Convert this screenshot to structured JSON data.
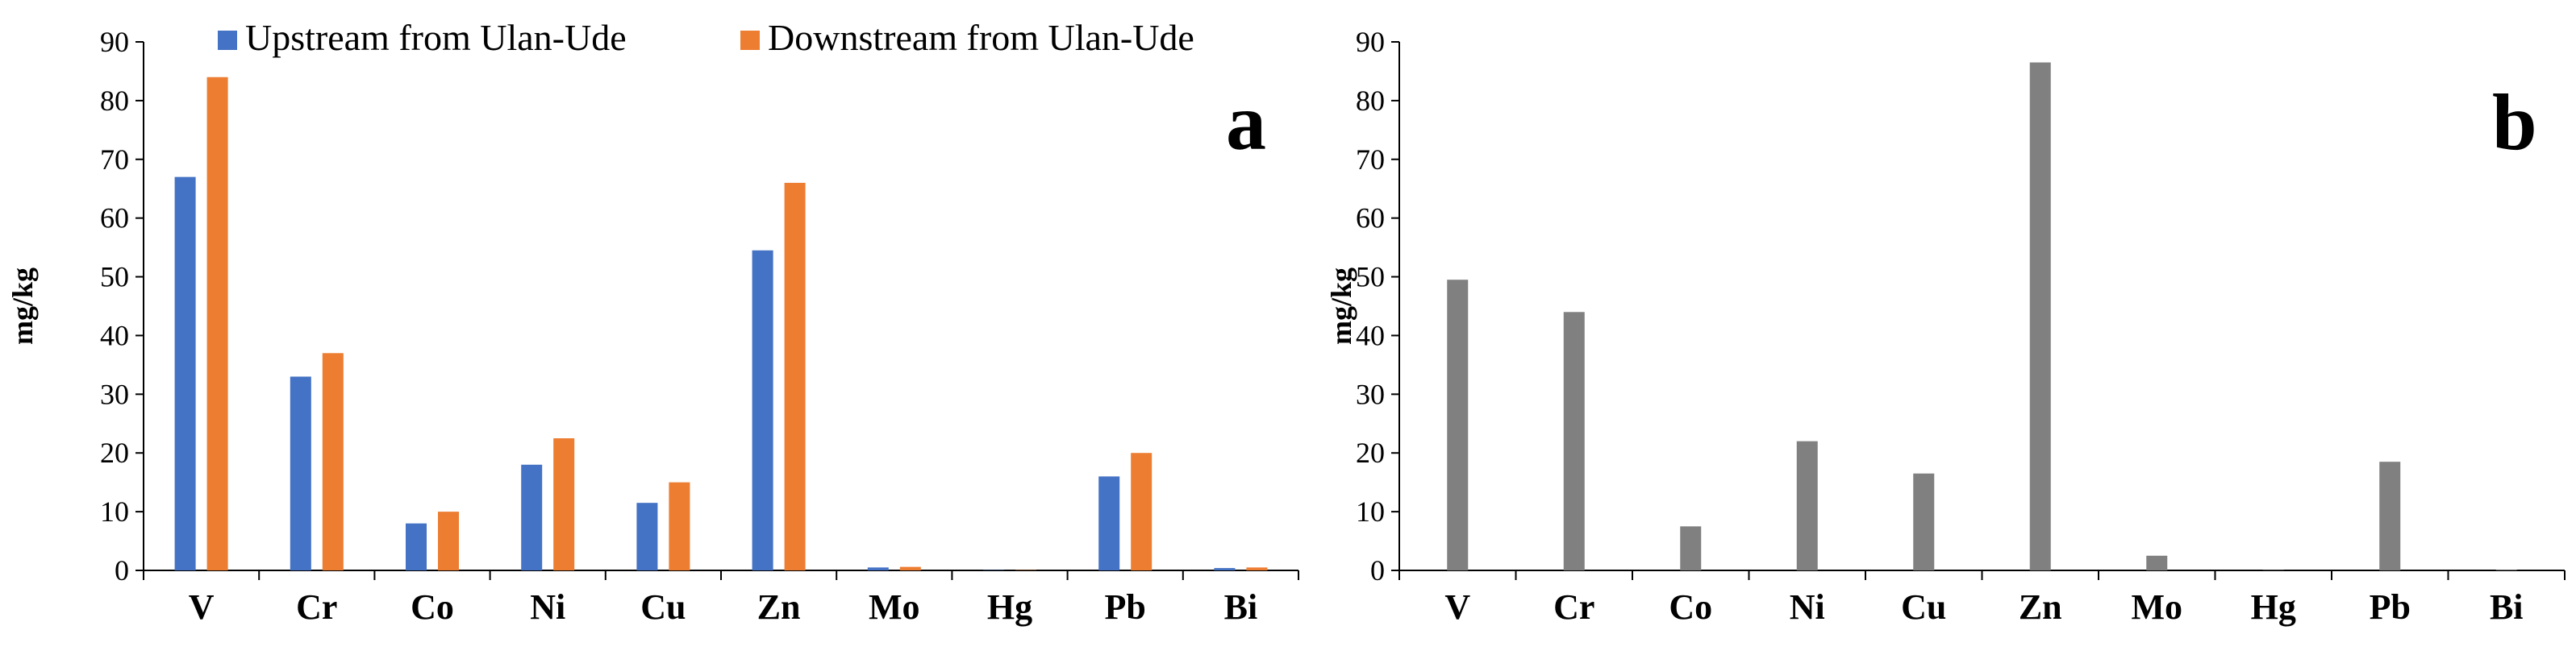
{
  "chart_data": [
    {
      "type": "bar",
      "panel_label": "a",
      "ylabel": "mg/kg",
      "ylim": [
        0,
        90
      ],
      "yticks": [
        0,
        10,
        20,
        30,
        40,
        50,
        60,
        70,
        80,
        90
      ],
      "categories": [
        "V",
        "Cr",
        "Co",
        "Ni",
        "Cu",
        "Zn",
        "Mo",
        "Hg",
        "Pb",
        "Bi"
      ],
      "series": [
        {
          "name": "Upstream from Ulan-Ude",
          "color": "#4472C4",
          "values": [
            67,
            33,
            8,
            18,
            11.5,
            54.5,
            0.5,
            0.05,
            16,
            0.4
          ]
        },
        {
          "name": "Downstream from Ulan-Ude",
          "color": "#ED7D31",
          "values": [
            84,
            37,
            10,
            22.5,
            15,
            66,
            0.6,
            0.05,
            20,
            0.5
          ]
        }
      ],
      "legend": "top"
    },
    {
      "type": "bar",
      "panel_label": "b",
      "ylabel": "mg/kg",
      "ylim": [
        0,
        90
      ],
      "yticks": [
        0,
        10,
        20,
        30,
        40,
        50,
        60,
        70,
        80,
        90
      ],
      "categories": [
        "V",
        "Cr",
        "Co",
        "Ni",
        "Cu",
        "Zn",
        "Mo",
        "Hg",
        "Pb",
        "Bi"
      ],
      "series": [
        {
          "color": "#808080",
          "values": [
            49.5,
            44,
            7.5,
            22,
            16.5,
            86.5,
            2.5,
            0.05,
            18.5,
            0.1
          ]
        }
      ]
    }
  ]
}
